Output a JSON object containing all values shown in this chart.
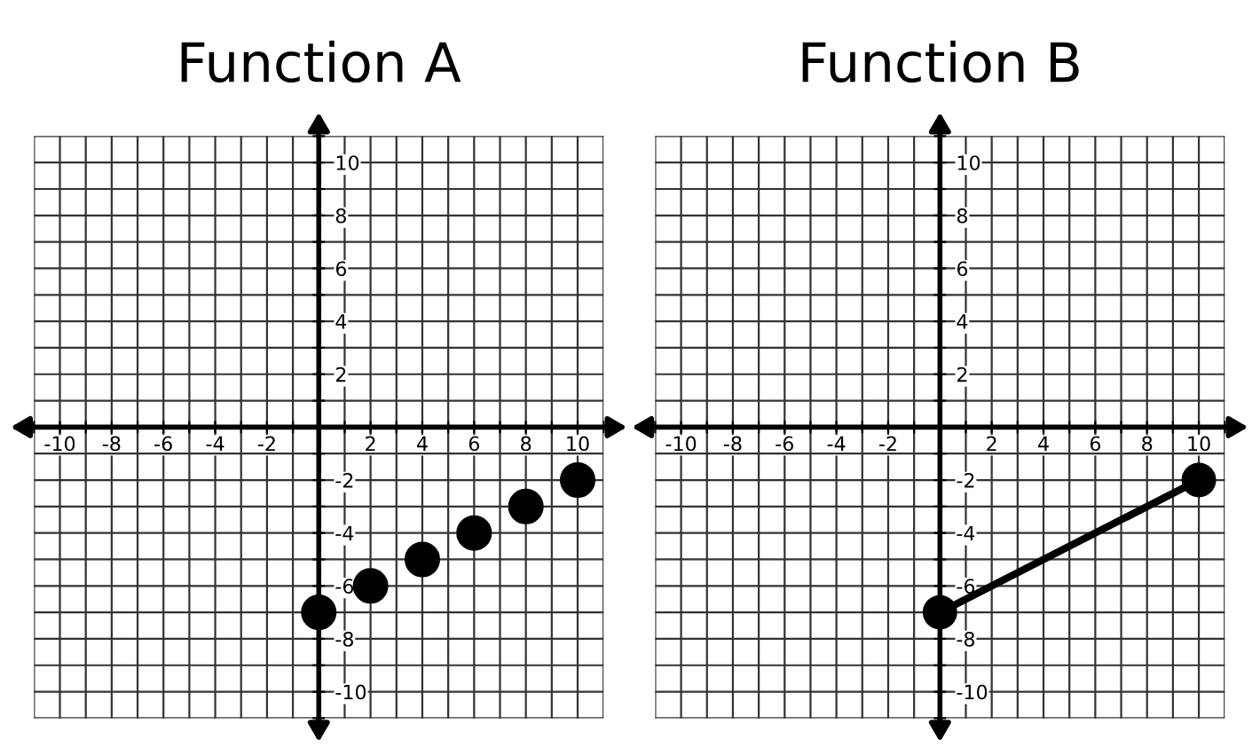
{
  "chart_data": [
    {
      "type": "scatter",
      "title": "Function A",
      "x": [
        0,
        2,
        4,
        6,
        8,
        10
      ],
      "values": [
        -7,
        -6,
        -5,
        -4,
        -3,
        -2
      ],
      "color": "#000000",
      "marker": "circle",
      "grid": true,
      "xlim": [
        -11,
        11
      ],
      "ylim": [
        -11,
        11
      ],
      "xticks": [
        {
          "value": -11,
          "label": null
        },
        -10,
        {
          "value": -9,
          "label": null
        },
        -8,
        {
          "value": -7,
          "label": null
        },
        -6,
        {
          "value": -5,
          "label": null
        },
        -4,
        {
          "value": -3,
          "label": null
        },
        -2,
        {
          "value": -1,
          "label": null
        },
        {
          "value": 0,
          "label": null
        },
        {
          "value": 1,
          "label": null
        },
        2,
        {
          "value": 3,
          "label": null
        },
        4,
        {
          "value": 5,
          "label": null
        },
        6,
        {
          "value": 7,
          "label": null
        },
        8,
        {
          "value": 9,
          "label": null
        },
        10,
        {
          "value": 11,
          "label": null
        }
      ],
      "yticks": [
        {
          "value": -11,
          "label": null
        },
        -10,
        {
          "value": -9,
          "label": null
        },
        -8,
        {
          "value": -7,
          "label": null
        },
        -6,
        {
          "value": -5,
          "label": null
        },
        -4,
        {
          "value": -3,
          "label": null
        },
        -2,
        {
          "value": -1,
          "label": null
        },
        {
          "value": 0,
          "label": null
        },
        {
          "value": 1,
          "label": null
        },
        2,
        {
          "value": 3,
          "label": null
        },
        4,
        {
          "value": 5,
          "label": null
        },
        6,
        {
          "value": 7,
          "label": null
        },
        8,
        {
          "value": 9,
          "label": null
        },
        10,
        {
          "value": 11,
          "label": null
        }
      ]
    },
    {
      "type": "line",
      "title": "Function B",
      "x": [
        0,
        10
      ],
      "values": [
        -7,
        -2
      ],
      "color": "#000000",
      "marker": "circle",
      "line_style": "solid",
      "grid": true,
      "xlim": [
        -11,
        11
      ],
      "ylim": [
        -11,
        11
      ],
      "xticks": [
        {
          "value": -11,
          "label": null
        },
        -10,
        {
          "value": -9,
          "label": null
        },
        -8,
        {
          "value": -7,
          "label": null
        },
        -6,
        {
          "value": -5,
          "label": null
        },
        -4,
        {
          "value": -3,
          "label": null
        },
        -2,
        {
          "value": -1,
          "label": null
        },
        {
          "value": 0,
          "label": null
        },
        {
          "value": 1,
          "label": null
        },
        2,
        {
          "value": 3,
          "label": null
        },
        4,
        {
          "value": 5,
          "label": null
        },
        6,
        {
          "value": 7,
          "label": null
        },
        8,
        {
          "value": 9,
          "label": null
        },
        10,
        {
          "value": 11,
          "label": null
        }
      ],
      "yticks": [
        {
          "value": -11,
          "label": null
        },
        -10,
        {
          "value": -9,
          "label": null
        },
        -8,
        {
          "value": -7,
          "label": null
        },
        -6,
        {
          "value": -5,
          "label": null
        },
        -4,
        {
          "value": -3,
          "label": null
        },
        -2,
        {
          "value": -1,
          "label": null
        },
        {
          "value": 0,
          "label": null
        },
        {
          "value": 1,
          "label": null
        },
        2,
        {
          "value": 3,
          "label": null
        },
        4,
        {
          "value": 5,
          "label": null
        },
        6,
        {
          "value": 7,
          "label": null
        },
        8,
        {
          "value": 9,
          "label": null
        },
        10,
        {
          "value": 11,
          "label": null
        }
      ]
    }
  ]
}
